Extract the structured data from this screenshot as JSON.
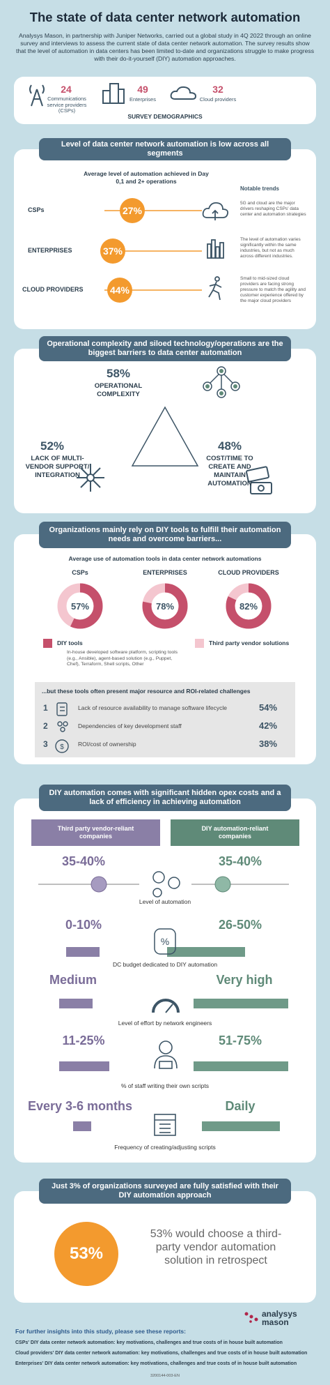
{
  "header": {
    "title": "The state of data center network automation",
    "intro": "Analysys Mason, in partnership with Juniper Networks, carried out a global study in 4Q 2022 through an online survey and interviews to assess the current state of data center network automation. The survey results show that the level of automation in data centers has been limited to-date and organizations struggle to make progress with their do-it-yourself (DIY) automation approaches."
  },
  "demographics": {
    "title": "SURVEY DEMOGRAPHICS",
    "items": [
      {
        "count": "24",
        "label": "Communications service providers (CSPs)"
      },
      {
        "count": "49",
        "label": "Enterprises"
      },
      {
        "count": "32",
        "label": "Cloud providers"
      }
    ]
  },
  "automation_level": {
    "heading": "Level of data center network automation is low across all segments",
    "subtitle": "Average level of automation achieved in Day 0,1 and 2+ operations",
    "trends_title": "Notable trends",
    "rows": [
      {
        "segment": "CSPs",
        "value": "27%",
        "trend": "5G and cloud are the major drivers reshaping CSPs' data center and automation strategies"
      },
      {
        "segment": "ENTERPRISES",
        "value": "37%",
        "trend": "The level of automation varies significantly within the same industries, but not as much across different industries."
      },
      {
        "segment": "CLOUD PROVIDERS",
        "value": "44%",
        "trend": "Small to mid-sized cloud providers are facing strong pressure to match the agility and customer experience offered by the major cloud providers"
      }
    ]
  },
  "barriers": {
    "heading": "Operational complexity and siloed technology/operations are the biggest barriers to data center automation",
    "items": [
      {
        "value": "58%",
        "label": "OPERATIONAL COMPLEXITY"
      },
      {
        "value": "52%",
        "label": "LACK OF MULTI-VENDOR SUPPORT/ INTEGRATION"
      },
      {
        "value": "48%",
        "label": "COST/TIME TO CREATE AND MAINTAIN AUTOMATION"
      }
    ]
  },
  "tools": {
    "heading": "Organizations mainly rely on DIY tools to fulfill their automation needs and overcome barriers...",
    "subtitle": "Average use of automation tools in data center network automations",
    "donuts": [
      {
        "segment": "CSPs",
        "value": 57,
        "label": "57%"
      },
      {
        "segment": "ENTERPRISES",
        "value": 78,
        "label": "78%"
      },
      {
        "segment": "CLOUD PROVIDERS",
        "value": 82,
        "label": "82%"
      }
    ],
    "legend": [
      {
        "name": "DIY tools",
        "color": "#c5506b",
        "note": "In-house developed software platform, scripting tools (e.g., Ansible), agent-based solution (e.g., Puppet, Chef), Terraform, Shell scripts, Other"
      },
      {
        "name": "Third party vendor solutions",
        "color": "#f4c6cf"
      }
    ],
    "challenges_title": "...but these tools often present major resource and ROI-related challenges",
    "challenges": [
      {
        "rank": "1",
        "text": "Lack of resource availability to manage software lifecycle",
        "value": "54%"
      },
      {
        "rank": "2",
        "text": "Dependencies of key development staff",
        "value": "42%"
      },
      {
        "rank": "3",
        "text": "ROI/cost of ownership",
        "value": "38%"
      }
    ]
  },
  "comparison": {
    "heading": "DIY automation comes with significant hidden opex costs and a lack of efficiency in achieving automation",
    "columns": [
      "Third party vendor-reliant companies",
      "DIY automation-reliant companies"
    ],
    "rows": [
      {
        "left": "35-40%",
        "right": "35-40%",
        "label": "Level of automation"
      },
      {
        "left": "0-10%",
        "right": "26-50%",
        "label": "DC budget dedicated to DIY automation"
      },
      {
        "left": "Medium",
        "right": "Very high",
        "label": "Level of effort by network engineers"
      },
      {
        "left": "11-25%",
        "right": "51-75%",
        "label": "% of staff writing their own scripts"
      },
      {
        "left": "Every 3-6 months",
        "right": "Daily",
        "label": "Frequency of creating/adjusting scripts"
      }
    ]
  },
  "satisfaction": {
    "heading": "Just 3% of organizations surveyed are fully satisfied with their DIY automation approach",
    "value": "53%",
    "text": "53% would choose a third-party vendor automation solution in retrospect"
  },
  "footer": {
    "title": "For further insights into this study, please see these reports:",
    "reports": [
      "CSPs' DIY data center network automation: key motivations, challenges and true costs of in house built automation",
      "Cloud providers' DIY data center network automation: key motivations, challenges and true costs of in house built automation",
      "Enterprises' DIY data center network automation: key motivations, challenges and true costs of in house built automation"
    ],
    "code": "3200144-003-EN",
    "logo": "analysys mason"
  }
}
